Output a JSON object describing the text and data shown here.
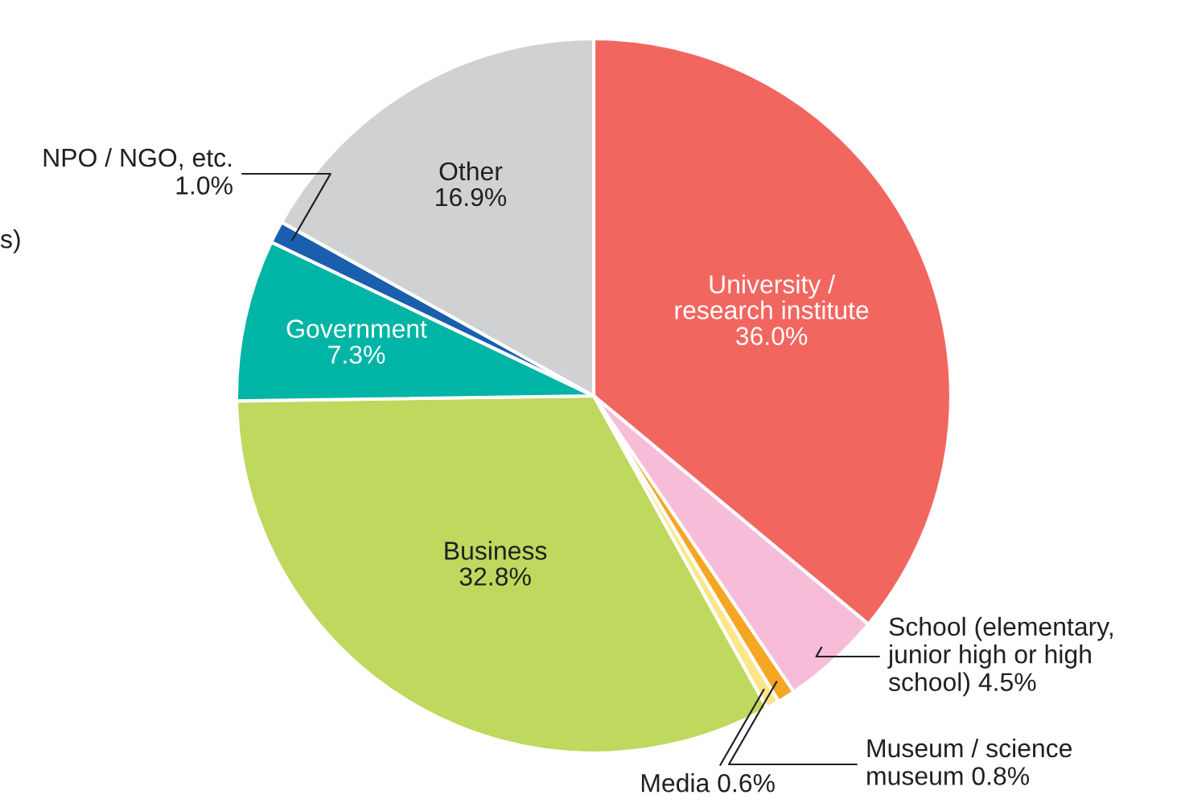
{
  "chart_data": {
    "type": "pie",
    "categories": [
      "University /\nresearch institute",
      "School (elementary,\njunior high or high\nschool)",
      "Museum / science\nmuseum",
      "Media",
      "Business",
      "Government",
      "NPO / NGO, etc.",
      "Other"
    ],
    "values": [
      36.0,
      4.5,
      0.8,
      0.6,
      32.8,
      7.3,
      1.0,
      16.9
    ],
    "colors": [
      "#f26660",
      "#f7bcd8",
      "#f5a623",
      "#fde68a",
      "#bfd85e",
      "#00b5a5",
      "#1a5fad",
      "#d0d1d3"
    ],
    "value_labels": [
      "36.0%",
      "4.5%",
      "0.8%",
      "0.6%",
      "32.8%",
      "7.3%",
      "1.0%",
      "16.9%"
    ],
    "annotations": [
      "s)"
    ]
  }
}
